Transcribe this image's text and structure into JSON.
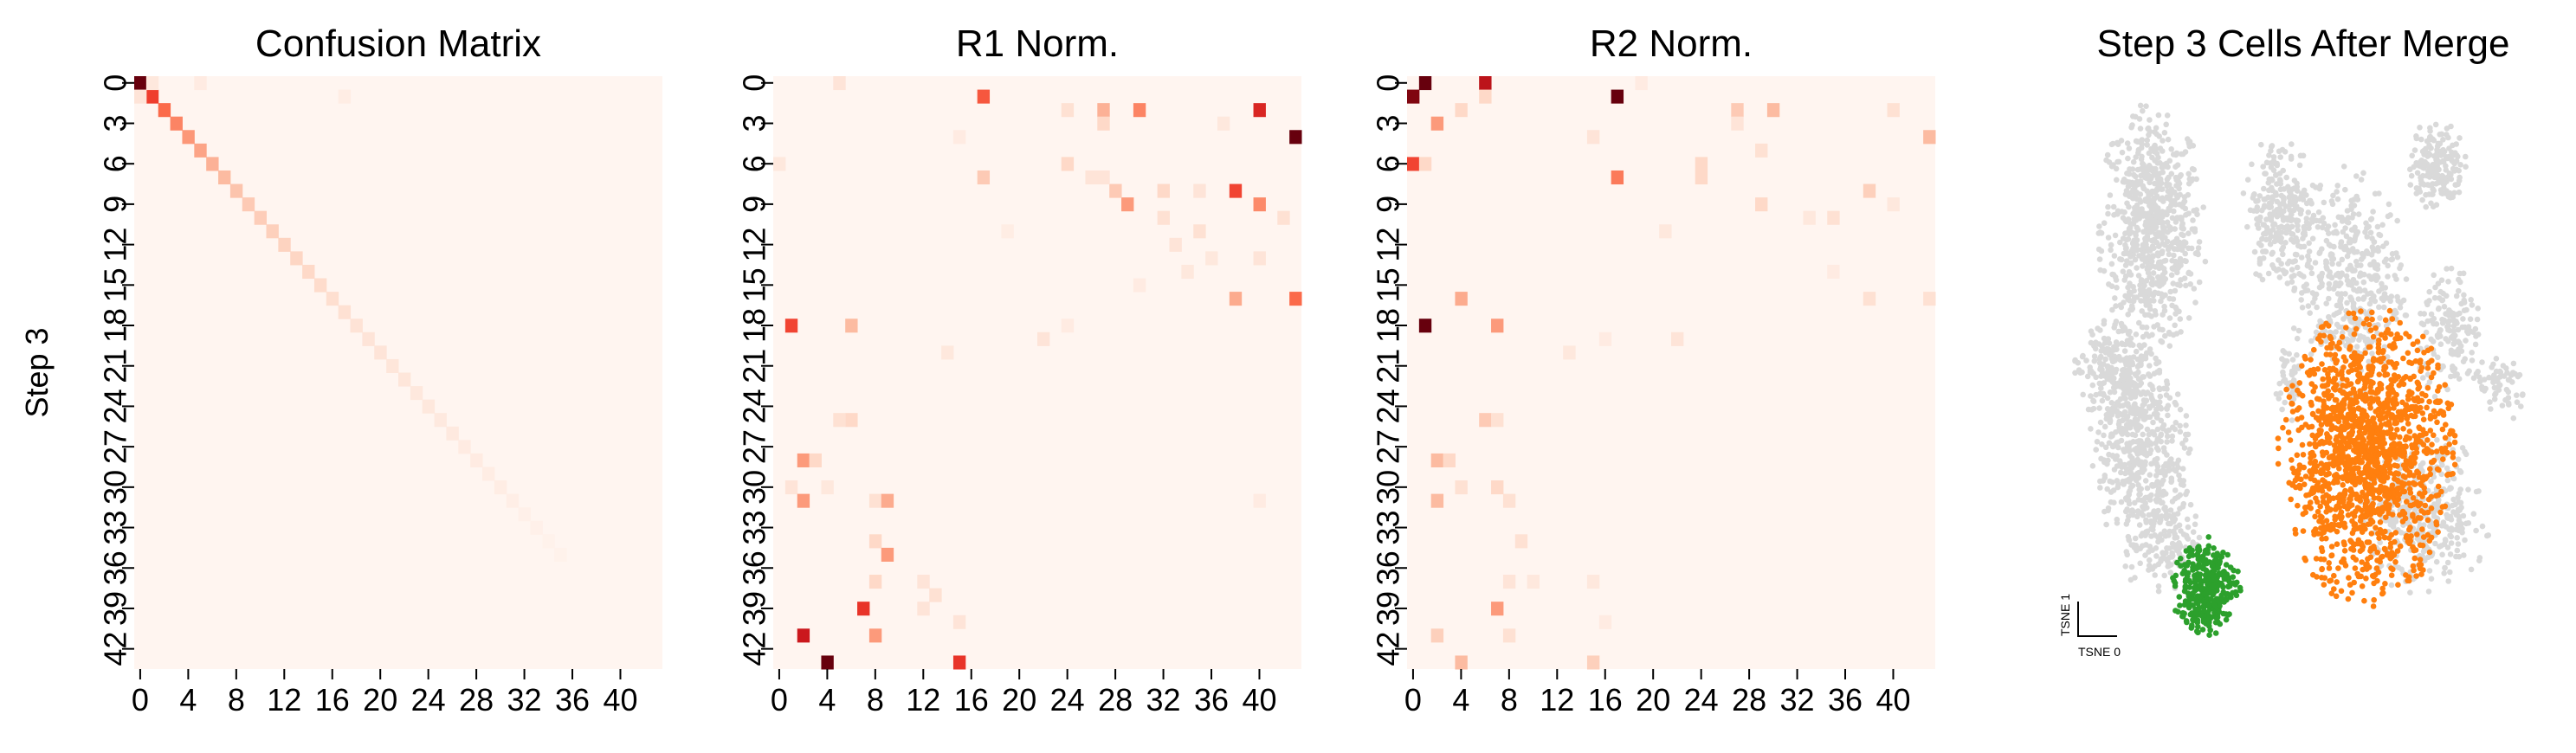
{
  "chart_data": [
    {
      "type": "heatmap",
      "title": "Confusion Matrix",
      "ylabel": "Step 3",
      "xlabel": "",
      "size": 44,
      "colormap": "Reds",
      "x_ticks": [
        0,
        4,
        8,
        12,
        16,
        20,
        24,
        28,
        32,
        36,
        40
      ],
      "y_ticks": [
        0,
        3,
        6,
        9,
        12,
        15,
        18,
        21,
        24,
        27,
        30,
        33,
        36,
        39,
        42
      ],
      "cells": [
        [
          0,
          0,
          1.0
        ],
        [
          1,
          1,
          0.62
        ],
        [
          2,
          2,
          0.5
        ],
        [
          3,
          3,
          0.42
        ],
        [
          4,
          4,
          0.36
        ],
        [
          5,
          5,
          0.32
        ],
        [
          6,
          6,
          0.28
        ],
        [
          7,
          7,
          0.25
        ],
        [
          8,
          8,
          0.22
        ],
        [
          9,
          9,
          0.2
        ],
        [
          10,
          10,
          0.19
        ],
        [
          11,
          11,
          0.18
        ],
        [
          12,
          12,
          0.17
        ],
        [
          13,
          13,
          0.16
        ],
        [
          14,
          14,
          0.15
        ],
        [
          15,
          15,
          0.14
        ],
        [
          16,
          16,
          0.13
        ],
        [
          17,
          17,
          0.12
        ],
        [
          18,
          18,
          0.11
        ],
        [
          19,
          19,
          0.1
        ],
        [
          20,
          20,
          0.1
        ],
        [
          21,
          21,
          0.09
        ],
        [
          22,
          22,
          0.09
        ],
        [
          23,
          23,
          0.08
        ],
        [
          24,
          24,
          0.08
        ],
        [
          25,
          25,
          0.07
        ],
        [
          26,
          26,
          0.07
        ],
        [
          27,
          27,
          0.06
        ],
        [
          28,
          28,
          0.06
        ],
        [
          29,
          29,
          0.05
        ],
        [
          30,
          30,
          0.05
        ],
        [
          31,
          31,
          0.04
        ],
        [
          32,
          32,
          0.03
        ],
        [
          33,
          33,
          0.03
        ],
        [
          34,
          34,
          0.02
        ],
        [
          35,
          35,
          0.02
        ],
        [
          5,
          0,
          0.06
        ],
        [
          17,
          1,
          0.05
        ],
        [
          0,
          1,
          0.1
        ],
        [
          1,
          0,
          0.08
        ]
      ]
    },
    {
      "type": "heatmap",
      "title": "R1 Norm.",
      "ylabel": "",
      "xlabel": "",
      "size": 44,
      "colormap": "Reds",
      "x_ticks": [
        0,
        4,
        8,
        12,
        16,
        20,
        24,
        28,
        32,
        36,
        40
      ],
      "y_ticks": [
        0,
        3,
        6,
        9,
        12,
        15,
        18,
        21,
        24,
        27,
        30,
        33,
        36,
        39,
        42
      ],
      "cells": [
        [
          5,
          0,
          0.1
        ],
        [
          17,
          1,
          0.55
        ],
        [
          24,
          2,
          0.12
        ],
        [
          27,
          2,
          0.28
        ],
        [
          30,
          2,
          0.42
        ],
        [
          37,
          3,
          0.08
        ],
        [
          40,
          2,
          0.7
        ],
        [
          43,
          4,
          1.0
        ],
        [
          15,
          4,
          0.06
        ],
        [
          0,
          6,
          0.08
        ],
        [
          17,
          7,
          0.2
        ],
        [
          24,
          6,
          0.15
        ],
        [
          27,
          3,
          0.15
        ],
        [
          26,
          7,
          0.1
        ],
        [
          29,
          9,
          0.35
        ],
        [
          28,
          8,
          0.2
        ],
        [
          32,
          8,
          0.15
        ],
        [
          35,
          8,
          0.1
        ],
        [
          38,
          8,
          0.6
        ],
        [
          40,
          9,
          0.4
        ],
        [
          42,
          10,
          0.12
        ],
        [
          32,
          10,
          0.12
        ],
        [
          19,
          11,
          0.05
        ],
        [
          33,
          12,
          0.1
        ],
        [
          35,
          11,
          0.12
        ],
        [
          36,
          13,
          0.08
        ],
        [
          40,
          13,
          0.1
        ],
        [
          30,
          15,
          0.06
        ],
        [
          38,
          16,
          0.3
        ],
        [
          43,
          16,
          0.5
        ],
        [
          1,
          18,
          0.6
        ],
        [
          6,
          18,
          0.25
        ],
        [
          14,
          20,
          0.08
        ],
        [
          22,
          19,
          0.1
        ],
        [
          24,
          18,
          0.06
        ],
        [
          6,
          25,
          0.15
        ],
        [
          5,
          25,
          0.12
        ],
        [
          2,
          28,
          0.35
        ],
        [
          3,
          28,
          0.15
        ],
        [
          1,
          30,
          0.1
        ],
        [
          2,
          31,
          0.35
        ],
        [
          4,
          30,
          0.08
        ],
        [
          8,
          31,
          0.12
        ],
        [
          9,
          31,
          0.3
        ],
        [
          8,
          34,
          0.15
        ],
        [
          9,
          35,
          0.35
        ],
        [
          8,
          37,
          0.15
        ],
        [
          12,
          37,
          0.1
        ],
        [
          13,
          38,
          0.12
        ],
        [
          7,
          39,
          0.65
        ],
        [
          12,
          39,
          0.1
        ],
        [
          15,
          40,
          0.1
        ],
        [
          2,
          41,
          0.75
        ],
        [
          8,
          41,
          0.35
        ],
        [
          4,
          43,
          1.0
        ],
        [
          15,
          43,
          0.65
        ],
        [
          40,
          31,
          0.06
        ],
        [
          34,
          14,
          0.08
        ],
        [
          27,
          7,
          0.1
        ]
      ]
    },
    {
      "type": "heatmap",
      "title": "R2 Norm.",
      "ylabel": "",
      "xlabel": "",
      "size": 44,
      "colormap": "Reds",
      "x_ticks": [
        0,
        4,
        8,
        12,
        16,
        20,
        24,
        28,
        32,
        36,
        40
      ],
      "y_ticks": [
        0,
        3,
        6,
        9,
        12,
        15,
        18,
        21,
        24,
        27,
        30,
        33,
        36,
        39,
        42
      ],
      "cells": [
        [
          1,
          0,
          1.0
        ],
        [
          0,
          1,
          0.95
        ],
        [
          6,
          0,
          0.8
        ],
        [
          2,
          3,
          0.35
        ],
        [
          4,
          2,
          0.15
        ],
        [
          0,
          6,
          0.6
        ],
        [
          1,
          6,
          0.15
        ],
        [
          6,
          1,
          0.15
        ],
        [
          17,
          1,
          1.0
        ],
        [
          19,
          0,
          0.06
        ],
        [
          24,
          6,
          0.15
        ],
        [
          27,
          2,
          0.2
        ],
        [
          30,
          2,
          0.25
        ],
        [
          29,
          9,
          0.15
        ],
        [
          27,
          3,
          0.1
        ],
        [
          17,
          7,
          0.45
        ],
        [
          38,
          8,
          0.18
        ],
        [
          40,
          2,
          0.12
        ],
        [
          43,
          4,
          0.25
        ],
        [
          15,
          4,
          0.1
        ],
        [
          21,
          11,
          0.08
        ],
        [
          33,
          10,
          0.08
        ],
        [
          35,
          10,
          0.12
        ],
        [
          24,
          7,
          0.15
        ],
        [
          40,
          9,
          0.08
        ],
        [
          1,
          18,
          1.0
        ],
        [
          4,
          16,
          0.3
        ],
        [
          7,
          18,
          0.35
        ],
        [
          13,
          20,
          0.08
        ],
        [
          16,
          19,
          0.06
        ],
        [
          22,
          19,
          0.1
        ],
        [
          38,
          16,
          0.12
        ],
        [
          43,
          16,
          0.12
        ],
        [
          6,
          25,
          0.2
        ],
        [
          7,
          25,
          0.12
        ],
        [
          2,
          28,
          0.25
        ],
        [
          3,
          28,
          0.15
        ],
        [
          2,
          31,
          0.25
        ],
        [
          4,
          30,
          0.12
        ],
        [
          7,
          30,
          0.15
        ],
        [
          8,
          31,
          0.12
        ],
        [
          9,
          34,
          0.12
        ],
        [
          8,
          37,
          0.1
        ],
        [
          10,
          37,
          0.08
        ],
        [
          7,
          39,
          0.35
        ],
        [
          15,
          37,
          0.08
        ],
        [
          2,
          41,
          0.18
        ],
        [
          8,
          41,
          0.12
        ],
        [
          4,
          43,
          0.25
        ],
        [
          15,
          43,
          0.18
        ],
        [
          16,
          40,
          0.06
        ],
        [
          35,
          14,
          0.06
        ],
        [
          29,
          5,
          0.12
        ]
      ]
    },
    {
      "type": "scatter",
      "title": "Step 3 Cells After Merge",
      "xlabel": "TSNE 0",
      "ylabel": "TSNE 1",
      "grid": false,
      "legend": "none",
      "colors": {
        "background": "#d9d9d9",
        "orange": "#ff7f0e",
        "green": "#2ca02c"
      },
      "groups": [
        {
          "color": "background",
          "clusters": [
            {
              "cx": 0.17,
              "cy": 0.78,
              "sx": 0.055,
              "sy": 0.11,
              "n": 700
            },
            {
              "cx": 0.1,
              "cy": 0.51,
              "sx": 0.05,
              "sy": 0.05,
              "n": 260
            },
            {
              "cx": 0.14,
              "cy": 0.36,
              "sx": 0.055,
              "sy": 0.08,
              "n": 400
            },
            {
              "cx": 0.19,
              "cy": 0.2,
              "sx": 0.04,
              "sy": 0.06,
              "n": 180
            },
            {
              "cx": 0.45,
              "cy": 0.81,
              "sx": 0.04,
              "sy": 0.07,
              "n": 260
            },
            {
              "cx": 0.6,
              "cy": 0.68,
              "sx": 0.06,
              "sy": 0.1,
              "n": 420
            },
            {
              "cx": 0.79,
              "cy": 0.9,
              "sx": 0.03,
              "sy": 0.04,
              "n": 180
            },
            {
              "cx": 0.82,
              "cy": 0.58,
              "sx": 0.035,
              "sy": 0.06,
              "n": 160
            },
            {
              "cx": 0.93,
              "cy": 0.48,
              "sx": 0.03,
              "sy": 0.03,
              "n": 60
            },
            {
              "cx": 0.76,
              "cy": 0.24,
              "sx": 0.07,
              "sy": 0.07,
              "n": 380
            },
            {
              "cx": 0.47,
              "cy": 0.49,
              "sx": 0.015,
              "sy": 0.04,
              "n": 50
            }
          ]
        },
        {
          "color": "orange",
          "clusters": [
            {
              "cx": 0.64,
              "cy": 0.35,
              "sx": 0.09,
              "sy": 0.13,
              "n": 1500
            }
          ]
        },
        {
          "color": "green",
          "clusters": [
            {
              "cx": 0.29,
              "cy": 0.1,
              "sx": 0.035,
              "sy": 0.045,
              "n": 340
            }
          ]
        }
      ]
    }
  ]
}
